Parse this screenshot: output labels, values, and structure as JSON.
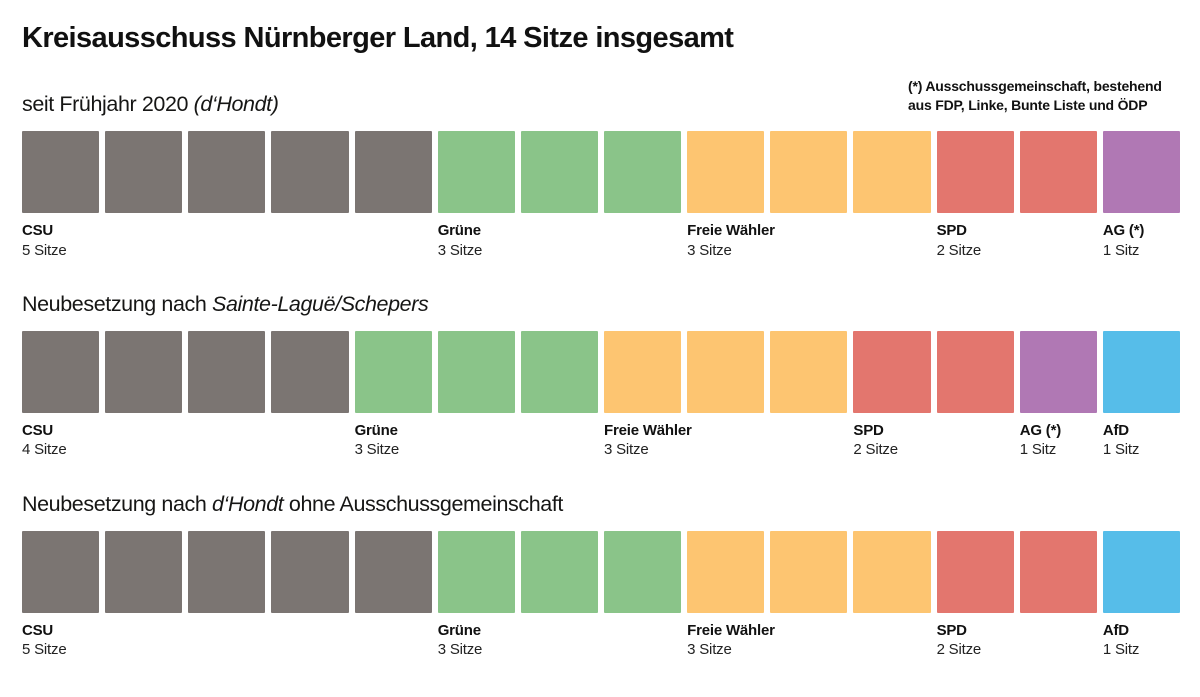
{
  "page": {
    "title": "Kreisausschuss Nürnberger Land, 14 Sitze insgesamt",
    "footnote": {
      "line1": "(*) Ausschussgemeinschaft, bestehend",
      "line2": "aus FDP, Linke, Bunte Liste und ÖDP"
    }
  },
  "colors": {
    "csu_gray": "#7b7572",
    "gruene_green": "#8ac489",
    "freie_waehler_orange": "#fdc571",
    "spd_red": "#e3766e",
    "ag_purple": "#b078b4",
    "afd_blue": "#56bde9",
    "background": "#ffffff",
    "text": "#161615"
  },
  "chart_data": {
    "type": "seat-grid",
    "title": "Kreisausschuss Nürnberger Land, 14 Sitze insgesamt",
    "seats_per_row": 14,
    "legend_position": "below-squares",
    "rows": [
      {
        "heading": {
          "prefix": "seit Frühjahr 2020 ",
          "italic": "(d‘Hondt)",
          "suffix": ""
        },
        "groups": [
          {
            "party": "CSU",
            "seats": 5,
            "seats_label": "5 Sitze",
            "color": "#7b7572"
          },
          {
            "party": "Grüne",
            "seats": 3,
            "seats_label": "3 Sitze",
            "color": "#8ac489"
          },
          {
            "party": "Freie Wähler",
            "seats": 3,
            "seats_label": "3 Sitze",
            "color": "#fdc571"
          },
          {
            "party": "SPD",
            "seats": 2,
            "seats_label": "2 Sitze",
            "color": "#e3766e"
          },
          {
            "party": "AG (*)",
            "seats": 1,
            "seats_label": "1 Sitz",
            "color": "#b078b4"
          }
        ]
      },
      {
        "heading": {
          "prefix": "Neubesetzung nach ",
          "italic": "Sainte-Laguë/Schepers",
          "suffix": ""
        },
        "groups": [
          {
            "party": "CSU",
            "seats": 4,
            "seats_label": "4 Sitze",
            "color": "#7b7572"
          },
          {
            "party": "Grüne",
            "seats": 3,
            "seats_label": "3 Sitze",
            "color": "#8ac489"
          },
          {
            "party": "Freie Wähler",
            "seats": 3,
            "seats_label": "3 Sitze",
            "color": "#fdc571"
          },
          {
            "party": "SPD",
            "seats": 2,
            "seats_label": "2 Sitze",
            "color": "#e3766e"
          },
          {
            "party": "AG (*)",
            "seats": 1,
            "seats_label": "1 Sitz",
            "color": "#b078b4"
          },
          {
            "party": "AfD",
            "seats": 1,
            "seats_label": "1 Sitz",
            "color": "#56bde9"
          }
        ]
      },
      {
        "heading": {
          "prefix": "Neubesetzung nach ",
          "italic": "d‘Hondt",
          "suffix": " ohne Ausschussgemeinschaft"
        },
        "groups": [
          {
            "party": "CSU",
            "seats": 5,
            "seats_label": "5 Sitze",
            "color": "#7b7572"
          },
          {
            "party": "Grüne",
            "seats": 3,
            "seats_label": "3 Sitze",
            "color": "#8ac489"
          },
          {
            "party": "Freie Wähler",
            "seats": 3,
            "seats_label": "3 Sitze",
            "color": "#fdc571"
          },
          {
            "party": "SPD",
            "seats": 2,
            "seats_label": "2 Sitze",
            "color": "#e3766e"
          },
          {
            "party": "AfD",
            "seats": 1,
            "seats_label": "1 Sitz",
            "color": "#56bde9"
          }
        ]
      }
    ]
  }
}
